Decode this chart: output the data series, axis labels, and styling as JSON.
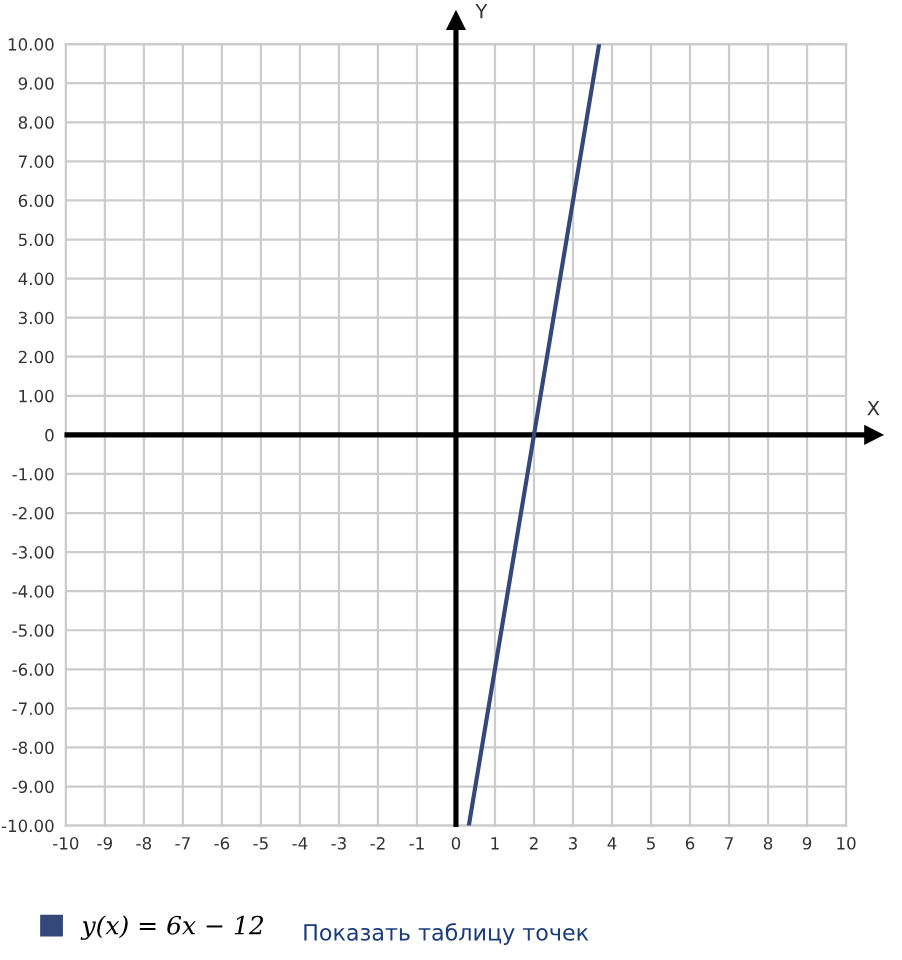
{
  "chart_data": {
    "type": "line",
    "xlabel": "X",
    "ylabel": "Y",
    "x": [
      0.33,
      3.67
    ],
    "series": [
      {
        "name": "y(x) = 6x − 12",
        "color": "#34487a",
        "values": [
          -10,
          10
        ]
      }
    ],
    "xlim": [
      -10,
      10
    ],
    "ylim": [
      -10,
      10
    ],
    "xticks": [
      -10,
      -9,
      -8,
      -7,
      -6,
      -5,
      -4,
      -3,
      -2,
      -1,
      0,
      1,
      2,
      3,
      4,
      5,
      6,
      7,
      8,
      9,
      10
    ],
    "yticks": [
      {
        "value": -10,
        "label": "-10.00"
      },
      {
        "value": -9,
        "label": "-9.00"
      },
      {
        "value": -8,
        "label": "-8.00"
      },
      {
        "value": -7,
        "label": "-7.00"
      },
      {
        "value": -6,
        "label": "-6.00"
      },
      {
        "value": -5,
        "label": "-5.00"
      },
      {
        "value": -4,
        "label": "-4.00"
      },
      {
        "value": -3,
        "label": "-3.00"
      },
      {
        "value": -2,
        "label": "-2.00"
      },
      {
        "value": -1,
        "label": "-1.00"
      },
      0,
      {
        "value": 1,
        "label": "1.00"
      },
      {
        "value": 2,
        "label": "2.00"
      },
      {
        "value": 3,
        "label": "3.00"
      },
      {
        "value": 4,
        "label": "4.00"
      },
      {
        "value": 5,
        "label": "5.00"
      },
      {
        "value": 6,
        "label": "6.00"
      },
      {
        "value": 7,
        "label": "7.00"
      },
      {
        "value": 8,
        "label": "8.00"
      },
      {
        "value": 9,
        "label": "9.00"
      },
      {
        "value": 10,
        "label": "10.00"
      }
    ],
    "grid": true,
    "legend": "bottom",
    "marker": "none",
    "line_style": "solid",
    "annotations": [
      "Показать таблицу точек"
    ]
  }
}
